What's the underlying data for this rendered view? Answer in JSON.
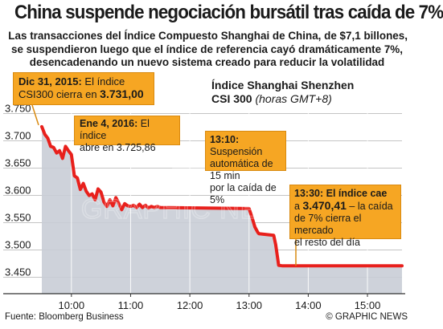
{
  "headline": "China suspende negociación bursátil tras caída de 7%",
  "deck": [
    "Las transacciones del Índice Compuesto Shanghai de China, de $7,1 billones,",
    "se suspendieron luego que el índice de referencia cayó dramáticamente 7%,",
    "desencadenando un nuevo sistema creado para reducir la volatilidad"
  ],
  "index_title": {
    "line1": "Índice Shanghai Shenzhen",
    "line2_bold": "CSI 300",
    "line2_italic": "(horas GMT+8)"
  },
  "annotations": {
    "dec31": {
      "date": "Dic 31, 2015:",
      "text1": " El índice",
      "text2": "CSI300 cierra en ",
      "value": "3.731,00"
    },
    "jan4": {
      "date": "Ene 4, 2016:",
      "text1": " El índice",
      "text2": "abre en 3.725,86"
    },
    "suspension": {
      "time": "13:10:",
      "text1": " Suspensión",
      "text2": "automática de 15 min",
      "text3": "por la caída de 5%"
    },
    "close": {
      "time": "13:30: El índice cae",
      "text1": "a ",
      "value": "3.470,41",
      "text1b": " – la caída",
      "text2": "de 7% cierra el mercado",
      "text3": "el resto del día"
    }
  },
  "footer": {
    "source": "Fuente: Bloomberg Business",
    "credit": "© GRAPHIC NEWS"
  },
  "colors": {
    "line": "#e8201c",
    "area": "#c9cdd6",
    "annotation": "#f6a623",
    "grid": "#b0b0b0"
  },
  "chart_data": {
    "type": "area",
    "ylim": [
      3420,
      3770
    ],
    "yticks": [
      3450,
      3500,
      3550,
      3600,
      3650,
      3700,
      3750
    ],
    "ytick_labels": [
      "3.450",
      "3.500",
      "3.550",
      "3.600",
      "3.650",
      "3.700",
      "3.750"
    ],
    "xticks": [
      "10:00",
      "11:00",
      "12:00",
      "13:00",
      "14:00",
      "15:00"
    ],
    "xlim": [
      "09:30",
      "15:35"
    ],
    "x": [
      "09:30",
      "09:33",
      "09:36",
      "09:39",
      "09:42",
      "09:45",
      "09:48",
      "09:51",
      "09:54",
      "09:57",
      "10:00",
      "10:03",
      "10:06",
      "10:09",
      "10:12",
      "10:15",
      "10:18",
      "10:21",
      "10:24",
      "10:27",
      "10:30",
      "10:33",
      "10:36",
      "10:39",
      "10:42",
      "10:45",
      "10:48",
      "10:51",
      "10:54",
      "10:57",
      "11:00",
      "11:03",
      "11:06",
      "11:09",
      "11:12",
      "11:15",
      "11:18",
      "11:21",
      "11:24",
      "11:27",
      "11:30",
      "13:00",
      "13:03",
      "13:06",
      "13:09",
      "13:10",
      "13:25",
      "13:27",
      "13:30",
      "13:34",
      "13:40",
      "14:00",
      "14:30",
      "15:00",
      "15:35"
    ],
    "y": [
      3726,
      3712,
      3705,
      3690,
      3688,
      3678,
      3682,
      3668,
      3690,
      3682,
      3675,
      3636,
      3632,
      3611,
      3622,
      3608,
      3600,
      3603,
      3592,
      3612,
      3606,
      3588,
      3580,
      3592,
      3581,
      3596,
      3586,
      3574,
      3585,
      3581,
      3580,
      3582,
      3578,
      3584,
      3578,
      3582,
      3577,
      3580,
      3578,
      3580,
      3578,
      3576,
      3560,
      3542,
      3532,
      3530,
      3527,
      3510,
      3472,
      3471,
      3471,
      3471,
      3471,
      3471,
      3471
    ]
  }
}
